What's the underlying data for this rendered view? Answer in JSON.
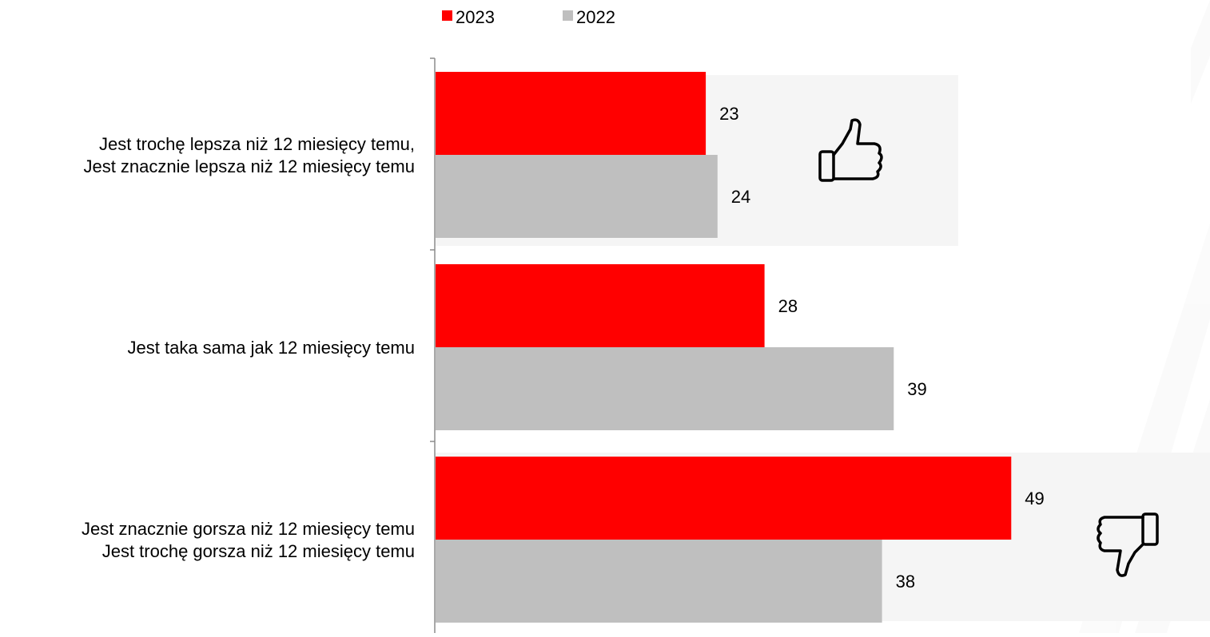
{
  "chart_data": {
    "type": "bar",
    "orientation": "horizontal",
    "title": "",
    "xlabel": "",
    "ylabel": "",
    "xlim": [
      0,
      50
    ],
    "grid": false,
    "legend": {
      "placement": "top-center",
      "entries": [
        "2023",
        "2022"
      ]
    },
    "categories": [
      [
        "Jest trochę lepsza niż 12 miesięcy temu,",
        "Jest znacznie lepsza niż 12 miesięcy temu"
      ],
      [
        "Jest taka sama jak 12 miesięcy temu"
      ],
      [
        "Jest znacznie gorsza niż 12 miesięcy temu",
        "Jest trochę gorsza niż 12 miesięcy temu"
      ]
    ],
    "series": [
      {
        "name": "2023",
        "color": "#ff0000",
        "values": [
          23,
          28,
          49
        ]
      },
      {
        "name": "2022",
        "color": "#bfbfbf",
        "values": [
          24,
          39,
          38
        ]
      }
    ],
    "data_labels": true,
    "highlight_panel_color": "#f5f5f5",
    "icons": [
      {
        "name": "thumbs-up-icon",
        "category_index": 0
      },
      {
        "name": "thumbs-down-icon",
        "category_index": 2
      }
    ]
  }
}
